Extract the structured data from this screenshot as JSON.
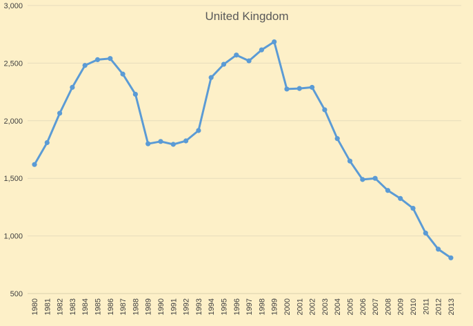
{
  "chart_data": {
    "type": "line",
    "title": "United Kingdom",
    "xlabel": "",
    "ylabel": "",
    "ylim": [
      500,
      3000
    ],
    "yticks": [
      500,
      1000,
      1500,
      2000,
      2500,
      3000
    ],
    "ytick_labels": [
      "500",
      "1,000",
      "1,500",
      "2,000",
      "2,500",
      "3,000"
    ],
    "grid": true,
    "legend": "none",
    "color": "#5b9bd5",
    "x": [
      "1980",
      "1981",
      "1982",
      "1983",
      "1984",
      "1985",
      "1986",
      "1987",
      "1988",
      "1989",
      "1990",
      "1991",
      "1992",
      "1993",
      "1994",
      "1995",
      "1996",
      "1997",
      "1998",
      "1999",
      "2000",
      "2001",
      "2002",
      "2003",
      "2004",
      "2005",
      "2006",
      "2007",
      "2008",
      "2009",
      "2010",
      "2011",
      "2012",
      "2013"
    ],
    "values": [
      1620,
      1810,
      2065,
      2290,
      2480,
      2530,
      2540,
      2405,
      2230,
      1800,
      1820,
      1795,
      1825,
      1915,
      2375,
      2490,
      2570,
      2520,
      2615,
      2685,
      2275,
      2280,
      2290,
      2095,
      1845,
      1650,
      1490,
      1500,
      1395,
      1325,
      1240,
      1025,
      885,
      810
    ]
  }
}
